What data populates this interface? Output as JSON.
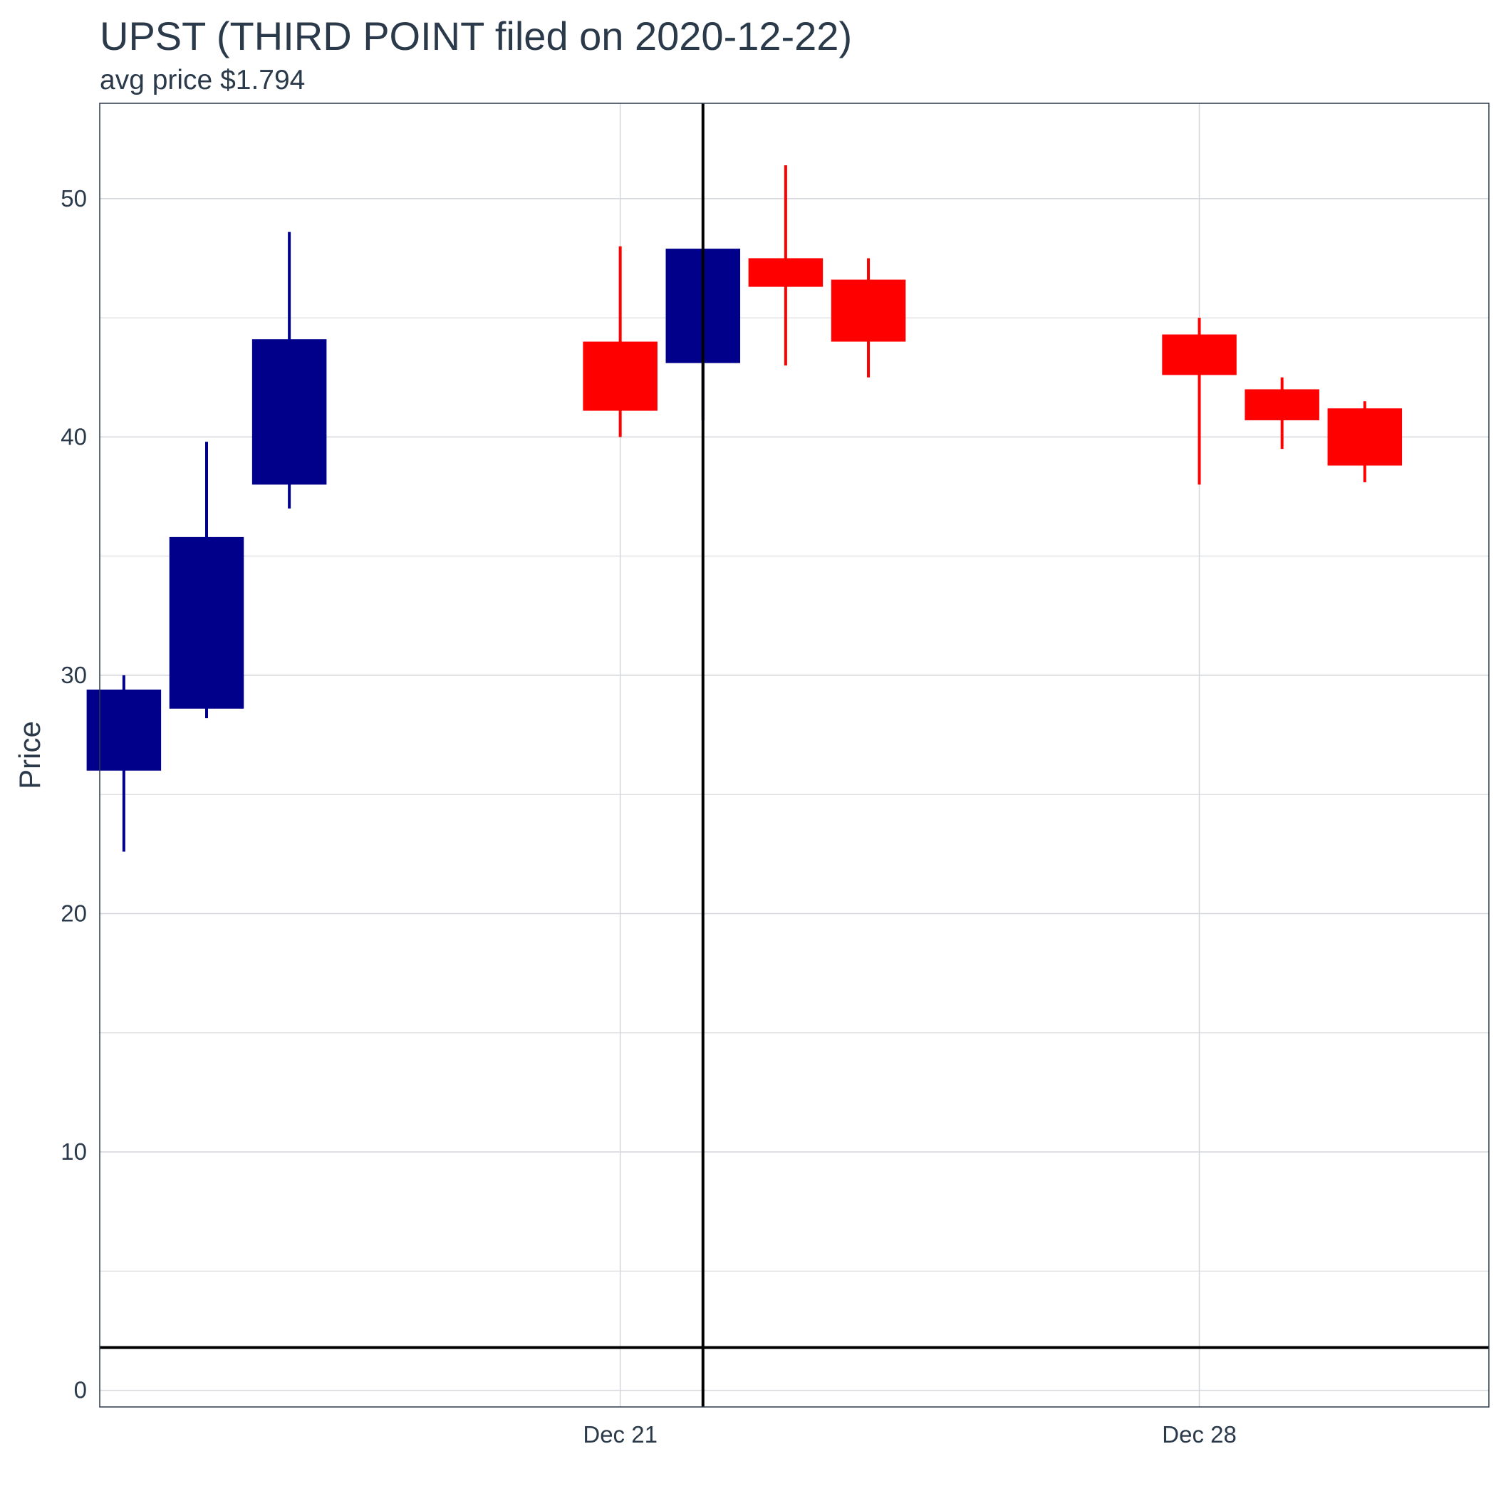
{
  "chart_data": {
    "type": "candlestick",
    "title": "UPST (THIRD POINT filed on 2020-12-22)",
    "subtitle": "avg price $1.794",
    "ylabel": "Price",
    "xlabel": "",
    "ylim": [
      -0.7,
      54
    ],
    "y_ticks": [
      0,
      10,
      20,
      30,
      40,
      50
    ],
    "x_ticks": [
      {
        "date": "2020-12-21",
        "label": "Dec 21"
      },
      {
        "date": "2020-12-28",
        "label": "Dec 28"
      }
    ],
    "x_range": [
      "2020-12-14T17:00",
      "2020-12-31T12:00"
    ],
    "grid": true,
    "filing_date": "2020-12-22",
    "avg_price": 1.794,
    "colors": {
      "up": "#00008B",
      "down": "#FF0000",
      "reference": "#000000",
      "grid": "#d3d6da",
      "text": "#2b3a4a"
    },
    "candles": [
      {
        "date": "2020-12-15",
        "open": 26.0,
        "high": 30.0,
        "low": 22.6,
        "close": 29.4
      },
      {
        "date": "2020-12-16",
        "open": 28.6,
        "high": 39.8,
        "low": 28.2,
        "close": 35.8
      },
      {
        "date": "2020-12-17",
        "open": 38.0,
        "high": 48.6,
        "low": 37.0,
        "close": 44.1
      },
      {
        "date": "2020-12-21",
        "open": 44.0,
        "high": 48.0,
        "low": 40.0,
        "close": 41.1
      },
      {
        "date": "2020-12-22",
        "open": 43.1,
        "high": 47.9,
        "low": 40.7,
        "close": 47.9
      },
      {
        "date": "2020-12-23",
        "open": 47.5,
        "high": 51.4,
        "low": 43.0,
        "close": 46.3
      },
      {
        "date": "2020-12-24",
        "open": 46.6,
        "high": 47.5,
        "low": 42.5,
        "close": 44.0
      },
      {
        "date": "2020-12-28",
        "open": 44.3,
        "high": 45.0,
        "low": 38.0,
        "close": 42.6
      },
      {
        "date": "2020-12-29",
        "open": 42.0,
        "high": 42.5,
        "low": 39.5,
        "close": 40.7
      },
      {
        "date": "2020-12-30",
        "open": 41.2,
        "high": 41.5,
        "low": 38.1,
        "close": 38.8
      }
    ]
  }
}
